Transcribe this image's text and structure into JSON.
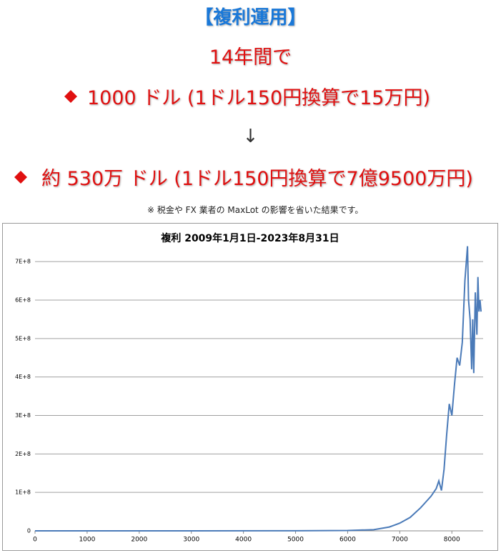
{
  "header": {
    "title": "【複利運用】",
    "period": "14年間で",
    "start": "1000 ドル (1ドル150円換算で15万円)",
    "arrow": "↓",
    "result": "約 530万 ドル (1ドル150円換算で7億9500万円)",
    "note": "※ 税金や FX 業者の MaxLot の影響を省いた結果です。"
  },
  "chart_data": {
    "type": "line",
    "title": "複利 2009年1月1日-2023年8月31日",
    "x": [
      0,
      1000,
      3000,
      5000,
      6000,
      6500,
      6800,
      6900,
      7000,
      7200,
      7400,
      7500,
      7600,
      7700,
      7750,
      7800,
      7850,
      7900,
      7950,
      8000,
      8050,
      8100,
      8150,
      8200,
      8250,
      8300,
      8320,
      8350,
      8380,
      8400,
      8420,
      8450,
      8480,
      8500,
      8520,
      8540,
      8560
    ],
    "series": [
      {
        "name": "複利",
        "color": "#4a7ab8",
        "values": [
          0,
          0,
          0,
          200000,
          1000000,
          3000000,
          10000000,
          15000000,
          20000000,
          35000000,
          60000000,
          75000000,
          90000000,
          110000000,
          130000000,
          105000000,
          160000000,
          250000000,
          330000000,
          300000000,
          380000000,
          450000000,
          430000000,
          490000000,
          650000000,
          740000000,
          600000000,
          550000000,
          420000000,
          550000000,
          410000000,
          620000000,
          510000000,
          660000000,
          570000000,
          600000000,
          570000000
        ]
      }
    ],
    "xlim": [
      0,
      8600
    ],
    "ylim": [
      0,
      730000000
    ],
    "xticks": [
      0,
      1000,
      2000,
      3000,
      4000,
      5000,
      6000,
      7000,
      8000
    ],
    "yticks": [
      0,
      {
        "value": 100000000,
        "label": "1E+8"
      },
      {
        "value": 200000000,
        "label": "2E+8"
      },
      {
        "value": 300000000,
        "label": "3E+8"
      },
      {
        "value": 400000000,
        "label": "4E+8"
      },
      {
        "value": 500000000,
        "label": "5E+8"
      },
      {
        "value": 600000000,
        "label": "6E+8"
      },
      {
        "value": 700000000,
        "label": "7E+8"
      }
    ],
    "grid": true
  }
}
